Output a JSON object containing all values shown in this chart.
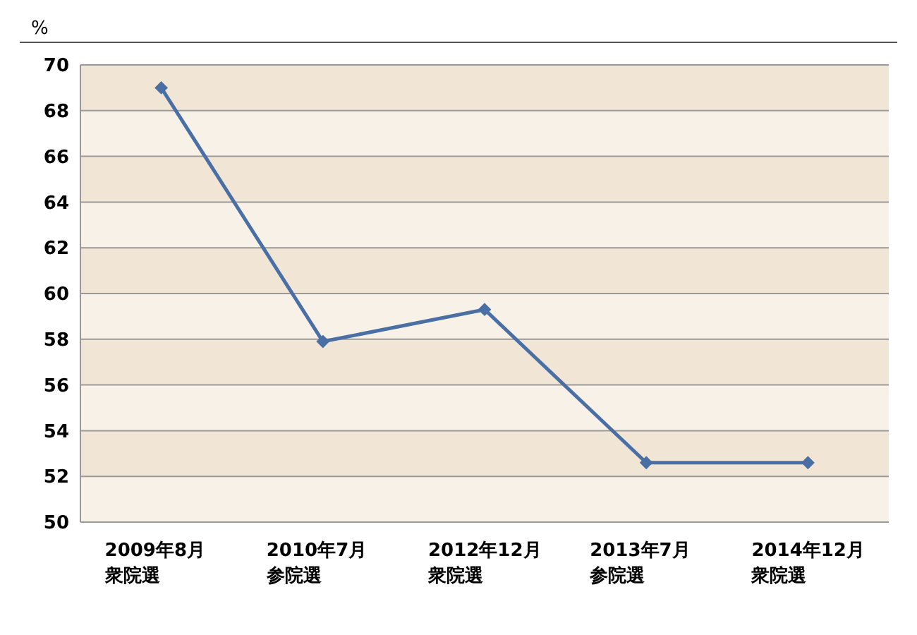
{
  "chart_data": {
    "type": "line",
    "ylabel": "%",
    "categories": [
      "2009年8月衆院選",
      "2010年7月参院選",
      "2012年12月衆院選",
      "2013年7月参院選",
      "2014年12月衆院選"
    ],
    "series": [
      {
        "color": "#4a6fa5",
        "values": [
          69.0,
          57.9,
          59.3,
          52.6,
          52.6
        ]
      }
    ],
    "ylim": [
      50,
      70
    ],
    "yticks": [
      50,
      52,
      54,
      56,
      58,
      60,
      62,
      64,
      66,
      68,
      70
    ],
    "grid": "y",
    "marker": "diamond",
    "line_style": "solid",
    "legend": false
  }
}
